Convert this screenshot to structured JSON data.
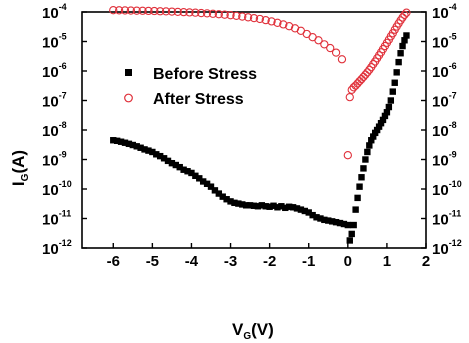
{
  "chart_data": {
    "type": "scatter",
    "title": "",
    "xlabel": {
      "main": "V",
      "sub": "G",
      "unit": "(V)"
    },
    "ylabel": {
      "main": "I",
      "sub": "G",
      "unit": "(A)"
    },
    "xlim": [
      -6.8,
      2
    ],
    "ylim": [
      1e-12,
      0.0001
    ],
    "yscale": "log",
    "grid": false,
    "legend_position": "top-center",
    "x_ticks": [
      {
        "value": -6,
        "label": "-6"
      },
      {
        "value": -5,
        "label": "-5"
      },
      {
        "value": -4,
        "label": "-4"
      },
      {
        "value": -3,
        "label": "-3"
      },
      {
        "value": -2,
        "label": "-2"
      },
      {
        "value": -1,
        "label": "-1"
      },
      {
        "value": 0,
        "label": "0"
      },
      {
        "value": 1,
        "label": "1"
      },
      {
        "value": 2,
        "label": "2"
      }
    ],
    "y_ticks": [
      {
        "value": 0.0001,
        "base": "10",
        "exp": "-4"
      },
      {
        "value": 1e-05,
        "base": "10",
        "exp": "-5"
      },
      {
        "value": 1e-06,
        "base": "10",
        "exp": "-6"
      },
      {
        "value": 1e-07,
        "base": "10",
        "exp": "-7"
      },
      {
        "value": 1e-08,
        "base": "10",
        "exp": "-8"
      },
      {
        "value": 1e-09,
        "base": "10",
        "exp": "-9"
      },
      {
        "value": 1e-10,
        "base": "10",
        "exp": "-10"
      },
      {
        "value": 1e-11,
        "base": "10",
        "exp": "-11"
      },
      {
        "value": 1e-12,
        "base": "10",
        "exp": "-12"
      }
    ],
    "series": [
      {
        "name": "Before Stress",
        "marker": "square-filled",
        "color": "#000000",
        "points": [
          [
            -6.0,
            4.5e-09
          ],
          [
            -5.9,
            4.3e-09
          ],
          [
            -5.8,
            4e-09
          ],
          [
            -5.7,
            3.7e-09
          ],
          [
            -5.6,
            3.4e-09
          ],
          [
            -5.5,
            3.1e-09
          ],
          [
            -5.4,
            2.8e-09
          ],
          [
            -5.3,
            2.5e-09
          ],
          [
            -5.2,
            2.2e-09
          ],
          [
            -5.1,
            2e-09
          ],
          [
            -5.0,
            1.8e-09
          ],
          [
            -4.9,
            1.5e-09
          ],
          [
            -4.8,
            1.3e-09
          ],
          [
            -4.7,
            1.1e-09
          ],
          [
            -4.6,
            9e-10
          ],
          [
            -4.5,
            7.5e-10
          ],
          [
            -4.4,
            6.5e-10
          ],
          [
            -4.3,
            5.5e-10
          ],
          [
            -4.2,
            4.5e-10
          ],
          [
            -4.1,
            4e-10
          ],
          [
            -4.0,
            3.5e-10
          ],
          [
            -3.9,
            2.8e-10
          ],
          [
            -3.8,
            2.3e-10
          ],
          [
            -3.7,
            1.8e-10
          ],
          [
            -3.6,
            1.5e-10
          ],
          [
            -3.5,
            1.2e-10
          ],
          [
            -3.4,
            9e-11
          ],
          [
            -3.3,
            7e-11
          ],
          [
            -3.2,
            5.5e-11
          ],
          [
            -3.1,
            4.5e-11
          ],
          [
            -3.0,
            3.8e-11
          ],
          [
            -2.9,
            3.4e-11
          ],
          [
            -2.8,
            3.2e-11
          ],
          [
            -2.7,
            3e-11
          ],
          [
            -2.6,
            2.8e-11
          ],
          [
            -2.5,
            2.8e-11
          ],
          [
            -2.4,
            2.7e-11
          ],
          [
            -2.3,
            2.6e-11
          ],
          [
            -2.2,
            2.8e-11
          ],
          [
            -2.1,
            2.6e-11
          ],
          [
            -2.0,
            2.5e-11
          ],
          [
            -1.9,
            2.7e-11
          ],
          [
            -1.8,
            2.4e-11
          ],
          [
            -1.7,
            2.6e-11
          ],
          [
            -1.6,
            2.3e-11
          ],
          [
            -1.5,
            2.5e-11
          ],
          [
            -1.4,
            2.4e-11
          ],
          [
            -1.3,
            2.2e-11
          ],
          [
            -1.2,
            2e-11
          ],
          [
            -1.1,
            1.8e-11
          ],
          [
            -1.0,
            1.6e-11
          ],
          [
            -0.9,
            1.3e-11
          ],
          [
            -0.8,
            1.1e-11
          ],
          [
            -0.7,
            1e-11
          ],
          [
            -0.6,
            9e-12
          ],
          [
            -0.5,
            8.5e-12
          ],
          [
            -0.4,
            8e-12
          ],
          [
            -0.3,
            7.5e-12
          ],
          [
            -0.2,
            7e-12
          ],
          [
            -0.1,
            6.5e-12
          ],
          [
            0.0,
            6e-12
          ],
          [
            0.05,
            1.8e-12
          ],
          [
            0.1,
            3e-12
          ],
          [
            0.15,
            6e-12
          ],
          [
            0.2,
            2e-11
          ],
          [
            0.25,
            5e-11
          ],
          [
            0.3,
            1.2e-10
          ],
          [
            0.35,
            2.5e-10
          ],
          [
            0.4,
            5e-10
          ],
          [
            0.45,
            1e-09
          ],
          [
            0.5,
            1.8e-09
          ],
          [
            0.55,
            3e-09
          ],
          [
            0.6,
            4.5e-09
          ],
          [
            0.65,
            6e-09
          ],
          [
            0.7,
            8e-09
          ],
          [
            0.75,
            1e-08
          ],
          [
            0.8,
            1.3e-08
          ],
          [
            0.85,
            1.7e-08
          ],
          [
            0.9,
            2.2e-08
          ],
          [
            0.95,
            3e-08
          ],
          [
            1.0,
            4e-08
          ],
          [
            1.05,
            6e-08
          ],
          [
            1.1,
            1e-07
          ],
          [
            1.15,
            2e-07
          ],
          [
            1.2,
            4e-07
          ],
          [
            1.25,
            9e-07
          ],
          [
            1.3,
            2e-06
          ],
          [
            1.35,
            4e-06
          ],
          [
            1.4,
            7e-06
          ],
          [
            1.45,
            1.1e-05
          ],
          [
            1.5,
            1.6e-05
          ]
        ]
      },
      {
        "name": "After Stress",
        "marker": "circle-open",
        "color": "#e0303a",
        "points": [
          [
            -6.0,
            0.000115
          ],
          [
            -5.85,
            0.000114
          ],
          [
            -5.7,
            0.000113
          ],
          [
            -5.55,
            0.000112
          ],
          [
            -5.4,
            0.000111
          ],
          [
            -5.25,
            0.00011
          ],
          [
            -5.1,
            0.000109
          ],
          [
            -4.95,
            0.000108
          ],
          [
            -4.8,
            0.000106
          ],
          [
            -4.65,
            0.000105
          ],
          [
            -4.5,
            0.000103
          ],
          [
            -4.35,
            0.000101
          ],
          [
            -4.2,
            9.9e-05
          ],
          [
            -4.05,
            9.7e-05
          ],
          [
            -3.9,
            9.5e-05
          ],
          [
            -3.75,
            9.2e-05
          ],
          [
            -3.6,
            9e-05
          ],
          [
            -3.45,
            8.7e-05
          ],
          [
            -3.3,
            8.4e-05
          ],
          [
            -3.15,
            8.1e-05
          ],
          [
            -3.0,
            7.8e-05
          ],
          [
            -2.85,
            7.4e-05
          ],
          [
            -2.7,
            7e-05
          ],
          [
            -2.55,
            6.6e-05
          ],
          [
            -2.4,
            6.2e-05
          ],
          [
            -2.25,
            5.8e-05
          ],
          [
            -2.1,
            5.3e-05
          ],
          [
            -1.95,
            4.8e-05
          ],
          [
            -1.8,
            4.3e-05
          ],
          [
            -1.65,
            3.8e-05
          ],
          [
            -1.5,
            3.3e-05
          ],
          [
            -1.35,
            2.8e-05
          ],
          [
            -1.2,
            2.3e-05
          ],
          [
            -1.05,
            1.8e-05
          ],
          [
            -0.9,
            1.4e-05
          ],
          [
            -0.75,
            1.1e-05
          ],
          [
            -0.6,
            8e-06
          ],
          [
            -0.45,
            6e-06
          ],
          [
            -0.3,
            4.2e-06
          ],
          [
            -0.15,
            2.5e-06
          ],
          [
            0.0,
            1.4e-09
          ],
          [
            0.05,
            1.3e-07
          ],
          [
            0.1,
            2.3e-07
          ],
          [
            0.15,
            2.8e-07
          ],
          [
            0.2,
            3.2e-07
          ],
          [
            0.25,
            3.8e-07
          ],
          [
            0.3,
            4.5e-07
          ],
          [
            0.35,
            5.3e-07
          ],
          [
            0.4,
            6.3e-07
          ],
          [
            0.45,
            7.5e-07
          ],
          [
            0.5,
            9e-07
          ],
          [
            0.55,
            1.1e-06
          ],
          [
            0.6,
            1.35e-06
          ],
          [
            0.65,
            1.7e-06
          ],
          [
            0.7,
            2.1e-06
          ],
          [
            0.75,
            2.7e-06
          ],
          [
            0.8,
            3.4e-06
          ],
          [
            0.85,
            4.3e-06
          ],
          [
            0.9,
            5.5e-06
          ],
          [
            0.95,
            7e-06
          ],
          [
            1.0,
            9e-06
          ],
          [
            1.05,
            1.15e-05
          ],
          [
            1.1,
            1.5e-05
          ],
          [
            1.15,
            1.9e-05
          ],
          [
            1.2,
            2.5e-05
          ],
          [
            1.25,
            3.2e-05
          ],
          [
            1.3,
            4.1e-05
          ],
          [
            1.35,
            5.2e-05
          ],
          [
            1.4,
            6.5e-05
          ],
          [
            1.45,
            8e-05
          ],
          [
            1.5,
            9.5e-05
          ]
        ]
      }
    ]
  }
}
